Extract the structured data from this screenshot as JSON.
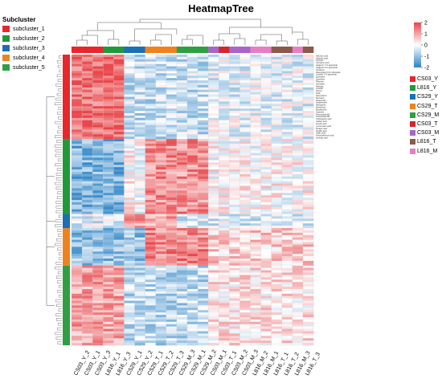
{
  "chart_data": {
    "type": "heatmap",
    "title": "HeatmapTree",
    "columns": [
      "CS03_Y_2",
      "CS03_Y_1",
      "CS03_Y_3",
      "L816_Y_1",
      "L816_Y_3",
      "CS29_Y_1",
      "CS29_Y_2",
      "CS29_T_1",
      "CS29_T_2",
      "CS29_T_3",
      "CS29_M_3",
      "CS29_M_1",
      "CS29_M_2",
      "CS03_M_1",
      "CS03_T_1",
      "CS03_M_2",
      "CS03_M_3",
      "L816_M_2",
      "L816_M_1",
      "L816_T_1",
      "L816_T_2",
      "L816_M_3",
      "L816_T_3"
    ],
    "column_groups": [
      "CS03_Y",
      "CS03_Y",
      "CS03_Y",
      "L816_Y",
      "L816_Y",
      "CS29_Y",
      "CS29_Y",
      "CS29_T",
      "CS29_T",
      "CS29_T",
      "CS29_M",
      "CS29_M",
      "CS29_M",
      "CS03_M",
      "CS03_T",
      "CS03_M",
      "CS03_M",
      "L816_M",
      "L816_M",
      "L816_T",
      "L816_T",
      "L816_M",
      "L816_T"
    ],
    "scale": {
      "min": -2,
      "max": 2,
      "ticks": [
        2,
        1,
        0,
        -1,
        -2
      ],
      "low_color": "#2b83c6",
      "mid_color": "#ffffff",
      "high_color": "#e8474b"
    },
    "subcluster_title": "Subcluster",
    "subclusters": [
      {
        "name": "subcluster_1",
        "color": "#e8262b"
      },
      {
        "name": "subcluster_2",
        "color": "#1f9a3a"
      },
      {
        "name": "subcluster_3",
        "color": "#1a6fb5"
      },
      {
        "name": "subcluster_4",
        "color": "#f0821e"
      },
      {
        "name": "subcluster_5",
        "color": "#2ea043"
      }
    ],
    "row_subclusters": [
      {
        "name": "subcluster_1",
        "rows": 36
      },
      {
        "name": "subcluster_2",
        "rows": 32
      },
      {
        "name": "subcluster_3",
        "rows": 6
      },
      {
        "name": "subcluster_4",
        "rows": 16
      },
      {
        "name": "subcluster_5",
        "rows": 34
      }
    ],
    "groups": [
      {
        "name": "CS03_Y",
        "color": "#e8262b"
      },
      {
        "name": "L816_Y",
        "color": "#1f9a3a"
      },
      {
        "name": "CS29_Y",
        "color": "#1a6fb5"
      },
      {
        "name": "CS29_T",
        "color": "#f0821e"
      },
      {
        "name": "CS29_M",
        "color": "#2ea043"
      },
      {
        "name": "CS03_T",
        "color": "#d4262c"
      },
      {
        "name": "CS03_M",
        "color": "#a865c9"
      },
      {
        "name": "L816_T",
        "color": "#8b5a4a"
      },
      {
        "name": "L816_M",
        "color": "#e77ec4"
      }
    ],
    "row_labels": [
      "Abscisic acid",
      "Salicylic acid",
      "Syringin",
      "Cinnamic acid",
      "Apigenin 7-O-glucoside",
      "Apigenin-6-C-glucoside",
      "Isovitexin",
      "Kaempferol 3-O-rutinoside",
      "Luteolin 7-O-glucoside",
      "Quercetin",
      "Quercitrin",
      "Phlorizin",
      "Genistein",
      "Naringin",
      "Luteolin",
      "Vitexin",
      "Rutin",
      "Kaempferol",
      "Myricetin",
      "Hesperidin",
      "Isoquercitrin",
      "Naringenin",
      "Eriodictyol",
      "Epicatechin",
      "Catechin",
      "Procyanidin B2",
      "Procyanidin B1",
      "Chlorogenic acid",
      "Caffeic acid",
      "Ferulic acid",
      "p-Coumaric acid",
      "Sinapic acid",
      "Vanillic acid",
      "Gallic acid",
      "Protocatechuic acid",
      "Syringic acid"
    ]
  }
}
